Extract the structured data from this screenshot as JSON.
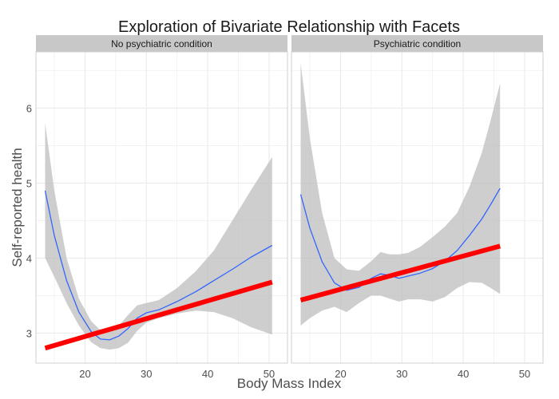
{
  "chart_data": {
    "type": "line",
    "title": "Exploration of Bivariate Relationship with Facets",
    "xlabel": "Body Mass Index",
    "ylabel": "Self-reported health",
    "xlim": [
      12,
      53
    ],
    "ylim": [
      2.6,
      6.75
    ],
    "x_ticks": [
      20,
      30,
      40,
      50
    ],
    "y_ticks": [
      3,
      4,
      5,
      6
    ],
    "grid": true,
    "colors": {
      "smooth": "#3366ff",
      "linear": "#ff0000",
      "ribbon": "#bebebe",
      "strip": "#c8c8c8",
      "grid": "#ebebeb",
      "panel_border": "#cfcfcf"
    },
    "facets": [
      {
        "label": "No psychiatric condition",
        "linear_fit": {
          "x": [
            13.5,
            50.5
          ],
          "y": [
            2.8,
            3.68
          ]
        },
        "smooth": [
          {
            "x": 13.5,
            "y": 4.9,
            "lo": 4.0,
            "hi": 5.8
          },
          {
            "x": 15,
            "y": 4.3,
            "lo": 3.75,
            "hi": 4.9
          },
          {
            "x": 17,
            "y": 3.7,
            "lo": 3.4,
            "hi": 4.0
          },
          {
            "x": 19,
            "y": 3.28,
            "lo": 3.1,
            "hi": 3.46
          },
          {
            "x": 21,
            "y": 3.02,
            "lo": 2.88,
            "hi": 3.16
          },
          {
            "x": 22.5,
            "y": 2.92,
            "lo": 2.8,
            "hi": 3.04
          },
          {
            "x": 24,
            "y": 2.91,
            "lo": 2.78,
            "hi": 3.04
          },
          {
            "x": 25.5,
            "y": 2.96,
            "lo": 2.8,
            "hi": 3.1
          },
          {
            "x": 27,
            "y": 3.06,
            "lo": 2.87,
            "hi": 3.24
          },
          {
            "x": 28.5,
            "y": 3.2,
            "lo": 3.03,
            "hi": 3.37
          },
          {
            "x": 30,
            "y": 3.27,
            "lo": 3.14,
            "hi": 3.4
          },
          {
            "x": 32,
            "y": 3.31,
            "lo": 3.2,
            "hi": 3.44
          },
          {
            "x": 35,
            "y": 3.42,
            "lo": 3.26,
            "hi": 3.6
          },
          {
            "x": 38,
            "y": 3.55,
            "lo": 3.3,
            "hi": 3.82
          },
          {
            "x": 41,
            "y": 3.7,
            "lo": 3.28,
            "hi": 4.1
          },
          {
            "x": 44,
            "y": 3.85,
            "lo": 3.2,
            "hi": 4.5
          },
          {
            "x": 47,
            "y": 4.01,
            "lo": 3.08,
            "hi": 4.9
          },
          {
            "x": 50.5,
            "y": 4.17,
            "lo": 2.98,
            "hi": 5.35
          }
        ]
      },
      {
        "label": "Psychiatric condition",
        "linear_fit": {
          "x": [
            13.5,
            46
          ],
          "y": [
            3.44,
            4.16
          ]
        },
        "smooth": [
          {
            "x": 13.5,
            "y": 4.85,
            "lo": 3.1,
            "hi": 6.6
          },
          {
            "x": 15,
            "y": 4.4,
            "lo": 3.2,
            "hi": 5.6
          },
          {
            "x": 17,
            "y": 3.95,
            "lo": 3.3,
            "hi": 4.6
          },
          {
            "x": 19,
            "y": 3.67,
            "lo": 3.35,
            "hi": 4.0
          },
          {
            "x": 21,
            "y": 3.57,
            "lo": 3.28,
            "hi": 3.85
          },
          {
            "x": 23,
            "y": 3.61,
            "lo": 3.4,
            "hi": 3.83
          },
          {
            "x": 25,
            "y": 3.73,
            "lo": 3.5,
            "hi": 3.96
          },
          {
            "x": 26.5,
            "y": 3.79,
            "lo": 3.5,
            "hi": 4.08
          },
          {
            "x": 28,
            "y": 3.77,
            "lo": 3.46,
            "hi": 4.05
          },
          {
            "x": 29.5,
            "y": 3.73,
            "lo": 3.42,
            "hi": 4.05
          },
          {
            "x": 31,
            "y": 3.76,
            "lo": 3.45,
            "hi": 4.07
          },
          {
            "x": 33,
            "y": 3.8,
            "lo": 3.45,
            "hi": 4.15
          },
          {
            "x": 35,
            "y": 3.86,
            "lo": 3.42,
            "hi": 4.28
          },
          {
            "x": 37,
            "y": 3.96,
            "lo": 3.48,
            "hi": 4.42
          },
          {
            "x": 39,
            "y": 4.1,
            "lo": 3.6,
            "hi": 4.6
          },
          {
            "x": 41,
            "y": 4.3,
            "lo": 3.68,
            "hi": 4.95
          },
          {
            "x": 43,
            "y": 4.52,
            "lo": 3.67,
            "hi": 5.4
          },
          {
            "x": 44.5,
            "y": 4.72,
            "lo": 3.6,
            "hi": 5.85
          },
          {
            "x": 46,
            "y": 4.93,
            "lo": 3.52,
            "hi": 6.33
          }
        ]
      }
    ]
  }
}
